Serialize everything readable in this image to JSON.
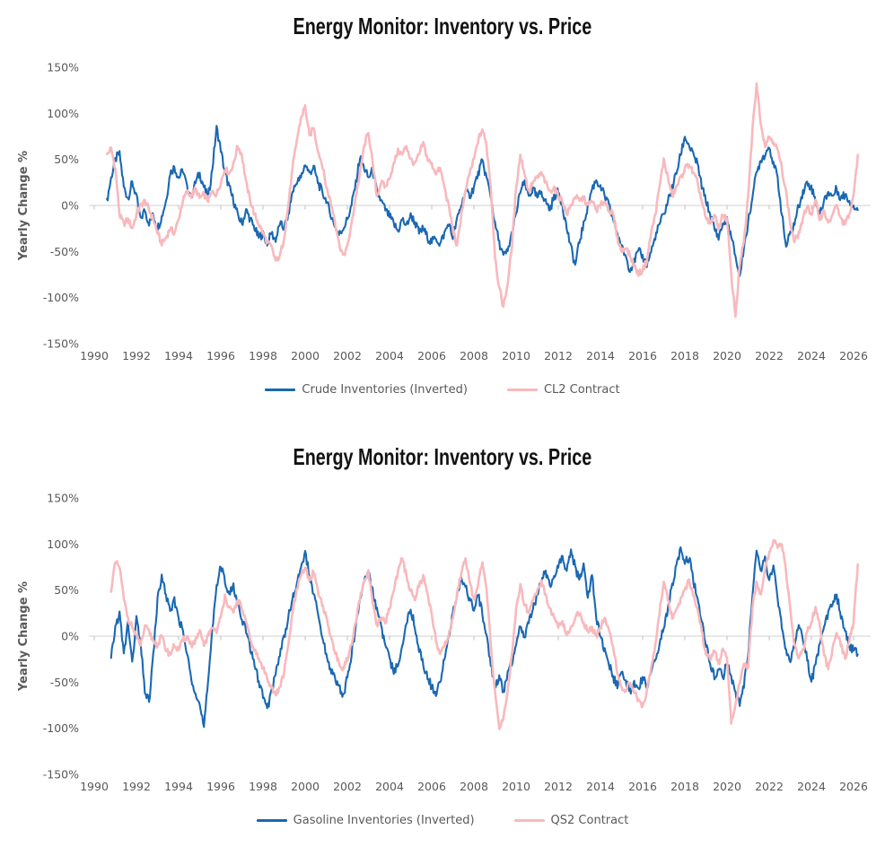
{
  "page_background": "#ffffff",
  "text_color_axis": "#595959",
  "grid_color": "#d9d9d9",
  "tick_color": "#bfbfbf",
  "chart_data": [
    {
      "type": "line",
      "title": "Energy Monitor: Inventory vs. Price",
      "xlabel": "",
      "ylabel": "Yearly Change %",
      "ylim": [
        -150,
        150
      ],
      "xlim": [
        1990,
        2026.6
      ],
      "y_tick_pct": [
        150,
        100,
        50,
        0,
        -50,
        -100,
        -150
      ],
      "x_tick_years": [
        1990,
        1992,
        1994,
        1996,
        1998,
        2000,
        2002,
        2004,
        2006,
        2008,
        2010,
        2012,
        2014,
        2016,
        2018,
        2020,
        2022,
        2024,
        2026
      ],
      "grid": "zero-line-only",
      "legend_position": "bottom",
      "series": [
        {
          "name": "Crude Inventories (Inverted)",
          "color": "#1a68b2",
          "width": 2.1,
          "noise_amp": 5,
          "x_start": 1990.6,
          "x_step": 0.2,
          "values": [
            5,
            30,
            50,
            57,
            20,
            8,
            25,
            10,
            -15,
            -5,
            -20,
            -10,
            -25,
            -12,
            5,
            35,
            42,
            30,
            38,
            20,
            10,
            25,
            35,
            20,
            8,
            40,
            85,
            60,
            35,
            20,
            5,
            -10,
            -20,
            -5,
            -15,
            -25,
            -35,
            -30,
            -42,
            -30,
            -38,
            -20,
            -25,
            -10,
            15,
            25,
            30,
            45,
            35,
            42,
            25,
            15,
            5,
            -10,
            -22,
            -32,
            -25,
            -15,
            0,
            25,
            52,
            40,
            30,
            38,
            15,
            5,
            -5,
            -12,
            -20,
            -28,
            -15,
            -22,
            -10,
            -18,
            -30,
            -25,
            -35,
            -40,
            -35,
            -42,
            -30,
            -20,
            -35,
            -15,
            0,
            15,
            10,
            20,
            35,
            48,
            30,
            10,
            -20,
            -40,
            -55,
            -50,
            -30,
            -10,
            15,
            25,
            10,
            18,
            8,
            15,
            5,
            -5,
            10,
            15,
            0,
            -25,
            -45,
            -65,
            -40,
            -20,
            0,
            18,
            28,
            20,
            10,
            0,
            -15,
            -30,
            -45,
            -55,
            -70,
            -60,
            -50,
            -55,
            -65,
            -50,
            -35,
            -20,
            -10,
            5,
            20,
            35,
            55,
            75,
            65,
            55,
            45,
            20,
            5,
            -10,
            -25,
            -35,
            -20,
            -15,
            -35,
            -55,
            -78,
            -45,
            -20,
            10,
            35,
            50,
            55,
            65,
            45,
            30,
            -10,
            -45,
            -30,
            -20,
            0,
            15,
            25,
            20,
            5,
            -10,
            5,
            15,
            10,
            18,
            8,
            12,
            5,
            0,
            -5
          ]
        },
        {
          "name": "CL2 Contract",
          "color": "#f8b9bd",
          "width": 2.6,
          "noise_amp": 3.5,
          "x_start": 1990.6,
          "x_step": 0.2,
          "values": [
            55,
            62,
            40,
            -10,
            -20,
            -15,
            -25,
            -10,
            0,
            5,
            -5,
            -15,
            -30,
            -42,
            -35,
            -25,
            -30,
            -15,
            5,
            15,
            10,
            18,
            8,
            12,
            5,
            15,
            12,
            25,
            40,
            35,
            45,
            65,
            55,
            25,
            5,
            -10,
            -20,
            -30,
            -40,
            -45,
            -60,
            -55,
            -35,
            0,
            40,
            70,
            95,
            108,
            75,
            85,
            60,
            45,
            20,
            5,
            -15,
            -40,
            -55,
            -45,
            -20,
            10,
            35,
            65,
            80,
            45,
            10,
            25,
            20,
            30,
            45,
            60,
            55,
            65,
            50,
            45,
            55,
            68,
            50,
            45,
            35,
            40,
            20,
            0,
            -25,
            -45,
            -10,
            15,
            35,
            50,
            70,
            83,
            65,
            20,
            -55,
            -90,
            -110,
            -85,
            -45,
            20,
            55,
            35,
            15,
            25,
            30,
            35,
            25,
            15,
            20,
            10,
            5,
            -10,
            0,
            10,
            5,
            8,
            0,
            5,
            -5,
            0,
            5,
            -5,
            -10,
            -35,
            -50,
            -45,
            -55,
            -65,
            -75,
            -70,
            -60,
            -30,
            -10,
            20,
            50,
            30,
            10,
            20,
            30,
            40,
            45,
            35,
            25,
            5,
            -15,
            -20,
            -10,
            -25,
            -10,
            -15,
            -75,
            -120,
            -65,
            -40,
            10,
            80,
            133,
            90,
            65,
            75,
            70,
            60,
            40,
            15,
            -20,
            -40,
            -30,
            -15,
            0,
            -10,
            5,
            -15,
            -5,
            -20,
            -10,
            0,
            -15,
            -20,
            -10,
            10,
            55
          ]
        }
      ]
    },
    {
      "type": "line",
      "title": "Energy Monitor: Inventory vs. Price",
      "xlabel": "",
      "ylabel": "Yearly Change %",
      "ylim": [
        -150,
        150
      ],
      "xlim": [
        1990,
        2026.6
      ],
      "y_tick_pct": [
        150,
        100,
        50,
        0,
        -50,
        -100,
        -150
      ],
      "x_tick_years": [
        1990,
        1992,
        1994,
        1996,
        1998,
        2000,
        2002,
        2004,
        2006,
        2008,
        2010,
        2012,
        2014,
        2016,
        2018,
        2020,
        2022,
        2024,
        2026
      ],
      "grid": "zero-line-only",
      "legend_position": "bottom",
      "series": [
        {
          "name": "Gasoline Inventories (Inverted)",
          "color": "#1a68b2",
          "width": 2.1,
          "noise_amp": 5,
          "x_start": 1990.8,
          "x_step": 0.2,
          "values": [
            -25,
            10,
            25,
            -20,
            15,
            -30,
            20,
            -10,
            -60,
            -72,
            -20,
            40,
            65,
            45,
            25,
            40,
            20,
            5,
            -20,
            -45,
            -60,
            -75,
            -100,
            -50,
            10,
            55,
            75,
            60,
            45,
            55,
            35,
            20,
            5,
            -15,
            -30,
            -50,
            -65,
            -80,
            -60,
            -40,
            -20,
            0,
            20,
            40,
            55,
            75,
            92,
            65,
            45,
            25,
            0,
            -20,
            -35,
            -45,
            -55,
            -65,
            -45,
            -20,
            10,
            40,
            60,
            70,
            50,
            30,
            10,
            -10,
            -25,
            -40,
            -30,
            -10,
            15,
            30,
            10,
            -15,
            -30,
            -45,
            -55,
            -65,
            -50,
            -25,
            0,
            25,
            45,
            62,
            55,
            40,
            30,
            45,
            25,
            0,
            -30,
            -55,
            -45,
            -60,
            -40,
            -30,
            -10,
            10,
            0,
            15,
            30,
            45,
            60,
            70,
            55,
            65,
            75,
            85,
            70,
            93,
            75,
            60,
            80,
            40,
            68,
            20,
            0,
            -15,
            -30,
            -45,
            -55,
            -40,
            -50,
            -60,
            -50,
            -55,
            -45,
            -55,
            -40,
            -25,
            -10,
            10,
            30,
            55,
            75,
            95,
            80,
            85,
            60,
            40,
            15,
            -10,
            -30,
            -45,
            -35,
            -45,
            -30,
            -45,
            -60,
            -75,
            -55,
            -20,
            40,
            95,
            70,
            85,
            60,
            75,
            40,
            10,
            -15,
            -30,
            -10,
            10,
            -5,
            -25,
            -50,
            -30,
            -10,
            10,
            25,
            35,
            45,
            20,
            5,
            -10,
            -15,
            -20
          ]
        },
        {
          "name": "QS2 Contract",
          "color": "#f8b9bd",
          "width": 2.6,
          "noise_amp": 3.5,
          "x_start": 1990.8,
          "x_step": 0.2,
          "values": [
            50,
            80,
            75,
            40,
            20,
            10,
            0,
            -10,
            10,
            5,
            -5,
            -10,
            0,
            -15,
            -20,
            -10,
            -15,
            -5,
            0,
            -10,
            -5,
            5,
            -10,
            0,
            10,
            5,
            20,
            45,
            30,
            25,
            40,
            30,
            15,
            -5,
            -15,
            -25,
            -35,
            -45,
            -55,
            -65,
            -55,
            -40,
            -10,
            25,
            50,
            65,
            75,
            60,
            70,
            50,
            35,
            20,
            0,
            -15,
            -30,
            -35,
            -25,
            -10,
            15,
            40,
            60,
            70,
            35,
            10,
            20,
            15,
            30,
            50,
            70,
            85,
            65,
            50,
            40,
            55,
            65,
            45,
            25,
            -5,
            -20,
            -10,
            0,
            20,
            45,
            70,
            85,
            60,
            40,
            55,
            80,
            50,
            -10,
            -60,
            -100,
            -90,
            -60,
            -20,
            30,
            55,
            35,
            25,
            40,
            50,
            60,
            45,
            30,
            20,
            10,
            15,
            0,
            10,
            20,
            25,
            15,
            5,
            10,
            0,
            10,
            20,
            5,
            -10,
            -40,
            -55,
            -60,
            -50,
            -60,
            -70,
            -75,
            -60,
            -35,
            -10,
            25,
            60,
            40,
            20,
            30,
            40,
            50,
            60,
            45,
            30,
            5,
            -20,
            -25,
            -15,
            -30,
            -15,
            -25,
            -95,
            -75,
            -50,
            -30,
            -35,
            30,
            60,
            45,
            70,
            90,
            105,
            95,
            100,
            70,
            30,
            -10,
            -25,
            -15,
            5,
            15,
            33,
            10,
            -20,
            -35,
            -15,
            5,
            -10,
            -25,
            -5,
            15,
            78
          ]
        }
      ]
    }
  ]
}
